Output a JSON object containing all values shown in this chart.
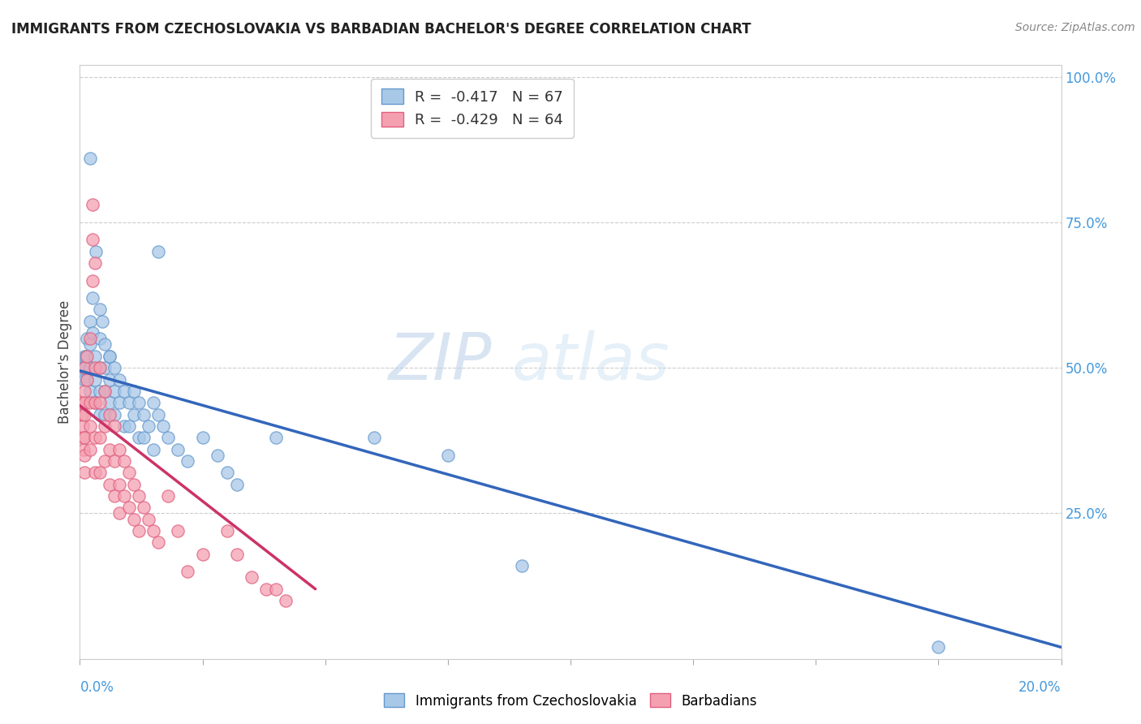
{
  "title": "IMMIGRANTS FROM CZECHOSLOVAKIA VS BARBADIAN BACHELOR'S DEGREE CORRELATION CHART",
  "source": "Source: ZipAtlas.com",
  "ylabel": "Bachelor's Degree",
  "watermark_zip": "ZIP",
  "watermark_atlas": "atlas",
  "blue_color": "#a8c8e8",
  "pink_color": "#f4a0b0",
  "blue_edge": "#6699cc",
  "pink_edge": "#e06080",
  "line_blue": "#3366bb",
  "line_pink": "#cc3366",
  "scatter_blue": [
    [
      0.0005,
      0.5
    ],
    [
      0.0008,
      0.485
    ],
    [
      0.001,
      0.5
    ],
    [
      0.001,
      0.52
    ],
    [
      0.001,
      0.48
    ],
    [
      0.0012,
      0.52
    ],
    [
      0.0015,
      0.55
    ],
    [
      0.0015,
      0.48
    ],
    [
      0.002,
      0.58
    ],
    [
      0.002,
      0.54
    ],
    [
      0.002,
      0.5
    ],
    [
      0.002,
      0.46
    ],
    [
      0.002,
      0.5
    ],
    [
      0.0025,
      0.62
    ],
    [
      0.0025,
      0.56
    ],
    [
      0.003,
      0.52
    ],
    [
      0.003,
      0.48
    ],
    [
      0.003,
      0.44
    ],
    [
      0.0032,
      0.7
    ],
    [
      0.004,
      0.6
    ],
    [
      0.004,
      0.55
    ],
    [
      0.004,
      0.5
    ],
    [
      0.004,
      0.46
    ],
    [
      0.004,
      0.42
    ],
    [
      0.0045,
      0.58
    ],
    [
      0.005,
      0.54
    ],
    [
      0.005,
      0.5
    ],
    [
      0.005,
      0.46
    ],
    [
      0.005,
      0.42
    ],
    [
      0.006,
      0.52
    ],
    [
      0.006,
      0.48
    ],
    [
      0.006,
      0.44
    ],
    [
      0.006,
      0.52
    ],
    [
      0.007,
      0.5
    ],
    [
      0.007,
      0.46
    ],
    [
      0.007,
      0.42
    ],
    [
      0.008,
      0.48
    ],
    [
      0.008,
      0.44
    ],
    [
      0.009,
      0.46
    ],
    [
      0.009,
      0.4
    ],
    [
      0.01,
      0.44
    ],
    [
      0.01,
      0.4
    ],
    [
      0.011,
      0.46
    ],
    [
      0.011,
      0.42
    ],
    [
      0.012,
      0.44
    ],
    [
      0.012,
      0.38
    ],
    [
      0.013,
      0.42
    ],
    [
      0.013,
      0.38
    ],
    [
      0.014,
      0.4
    ],
    [
      0.015,
      0.44
    ],
    [
      0.015,
      0.36
    ],
    [
      0.016,
      0.42
    ],
    [
      0.017,
      0.4
    ],
    [
      0.018,
      0.38
    ],
    [
      0.02,
      0.36
    ],
    [
      0.022,
      0.34
    ],
    [
      0.025,
      0.38
    ],
    [
      0.028,
      0.35
    ],
    [
      0.03,
      0.32
    ],
    [
      0.032,
      0.3
    ],
    [
      0.04,
      0.38
    ],
    [
      0.06,
      0.38
    ],
    [
      0.075,
      0.35
    ],
    [
      0.002,
      0.86
    ],
    [
      0.016,
      0.7
    ],
    [
      0.09,
      0.16
    ],
    [
      0.175,
      0.02
    ]
  ],
  "scatter_pink": [
    [
      0.0004,
      0.44
    ],
    [
      0.0005,
      0.42
    ],
    [
      0.0006,
      0.4
    ],
    [
      0.0007,
      0.38
    ],
    [
      0.0008,
      0.36
    ],
    [
      0.0009,
      0.5
    ],
    [
      0.001,
      0.46
    ],
    [
      0.001,
      0.42
    ],
    [
      0.001,
      0.38
    ],
    [
      0.001,
      0.35
    ],
    [
      0.001,
      0.32
    ],
    [
      0.001,
      0.44
    ],
    [
      0.0015,
      0.52
    ],
    [
      0.0015,
      0.48
    ],
    [
      0.002,
      0.44
    ],
    [
      0.002,
      0.4
    ],
    [
      0.002,
      0.36
    ],
    [
      0.002,
      0.55
    ],
    [
      0.0025,
      0.78
    ],
    [
      0.0025,
      0.72
    ],
    [
      0.0025,
      0.65
    ],
    [
      0.003,
      0.68
    ],
    [
      0.003,
      0.5
    ],
    [
      0.003,
      0.44
    ],
    [
      0.003,
      0.38
    ],
    [
      0.003,
      0.32
    ],
    [
      0.004,
      0.5
    ],
    [
      0.004,
      0.44
    ],
    [
      0.004,
      0.38
    ],
    [
      0.004,
      0.32
    ],
    [
      0.005,
      0.46
    ],
    [
      0.005,
      0.4
    ],
    [
      0.005,
      0.34
    ],
    [
      0.006,
      0.42
    ],
    [
      0.006,
      0.36
    ],
    [
      0.006,
      0.3
    ],
    [
      0.007,
      0.4
    ],
    [
      0.007,
      0.34
    ],
    [
      0.007,
      0.28
    ],
    [
      0.008,
      0.36
    ],
    [
      0.008,
      0.3
    ],
    [
      0.008,
      0.25
    ],
    [
      0.009,
      0.34
    ],
    [
      0.009,
      0.28
    ],
    [
      0.01,
      0.32
    ],
    [
      0.01,
      0.26
    ],
    [
      0.011,
      0.3
    ],
    [
      0.011,
      0.24
    ],
    [
      0.012,
      0.28
    ],
    [
      0.012,
      0.22
    ],
    [
      0.013,
      0.26
    ],
    [
      0.014,
      0.24
    ],
    [
      0.015,
      0.22
    ],
    [
      0.016,
      0.2
    ],
    [
      0.018,
      0.28
    ],
    [
      0.02,
      0.22
    ],
    [
      0.022,
      0.15
    ],
    [
      0.025,
      0.18
    ],
    [
      0.03,
      0.22
    ],
    [
      0.032,
      0.18
    ],
    [
      0.035,
      0.14
    ],
    [
      0.038,
      0.12
    ],
    [
      0.042,
      0.1
    ],
    [
      0.04,
      0.12
    ]
  ],
  "xlim": [
    0.0,
    0.2
  ],
  "ylim": [
    0.0,
    1.02
  ],
  "blue_line_x0": 0.0,
  "blue_line_y0": 0.495,
  "blue_line_x1": 0.2,
  "blue_line_y1": 0.02,
  "pink_line_x0": 0.0,
  "pink_line_y0": 0.435,
  "pink_line_x1": 0.048,
  "pink_line_y1": 0.12
}
